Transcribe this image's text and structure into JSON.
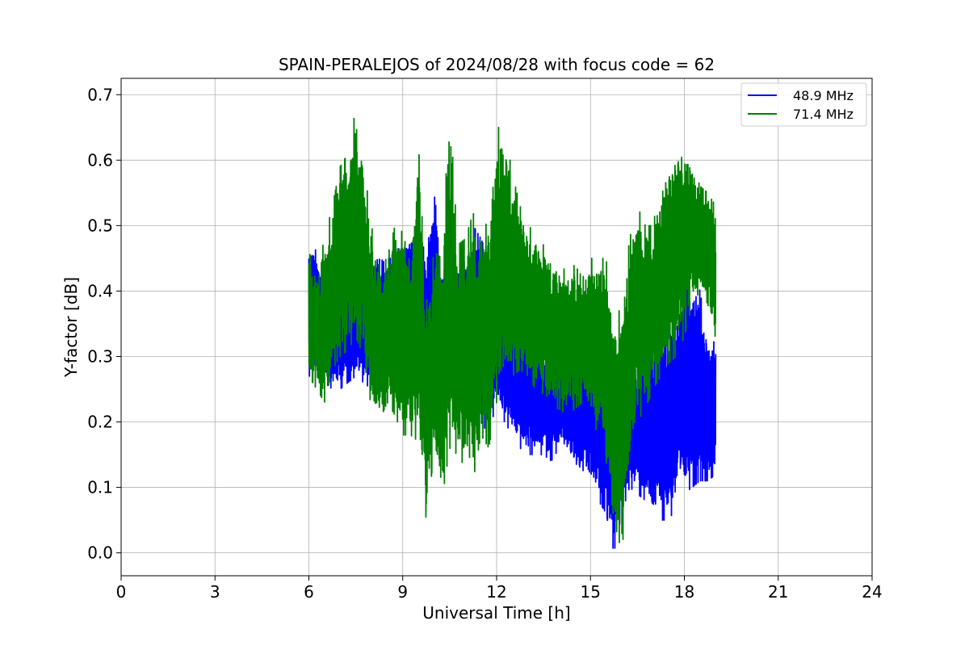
{
  "chart_data": {
    "type": "line",
    "title": "SPAIN-PERALEJOS of 2024/08/28 with focus code = 62",
    "xlabel": "Universal Time [h]",
    "ylabel": "Y-factor [dB]",
    "xlim": [
      0,
      24
    ],
    "ylim": [
      -0.035,
      0.725
    ],
    "xticks": [
      "0",
      "3",
      "6",
      "9",
      "12",
      "15",
      "18",
      "21",
      "24"
    ],
    "yticks": [
      "0.0",
      "0.1",
      "0.2",
      "0.3",
      "0.4",
      "0.5",
      "0.6",
      "0.7"
    ],
    "grid": true,
    "legend_position": "top-right",
    "series": [
      {
        "name": "48.9 MHz",
        "color": "#0000ff",
        "x": [
          6.0,
          6.25,
          6.5,
          6.75,
          7.0,
          7.25,
          7.5,
          7.75,
          8.0,
          8.25,
          8.5,
          8.75,
          9.0,
          9.25,
          9.5,
          9.75,
          10.0,
          10.25,
          10.5,
          10.75,
          11.0,
          11.25,
          11.5,
          11.75,
          12.0,
          12.25,
          12.5,
          12.75,
          13.0,
          13.25,
          13.5,
          13.75,
          14.0,
          14.25,
          14.5,
          14.75,
          15.0,
          15.25,
          15.5,
          15.75,
          16.0,
          16.25,
          16.5,
          16.75,
          17.0,
          17.25,
          17.5,
          17.75,
          18.0,
          18.25,
          18.5,
          18.75,
          19.0
        ],
        "low": [
          0.27,
          0.27,
          0.26,
          0.25,
          0.25,
          0.26,
          0.27,
          0.26,
          0.25,
          0.26,
          0.27,
          0.28,
          0.27,
          0.27,
          0.26,
          0.25,
          0.2,
          0.22,
          0.23,
          0.25,
          0.24,
          0.22,
          0.2,
          0.18,
          0.23,
          0.2,
          0.18,
          0.16,
          0.15,
          0.15,
          0.15,
          0.14,
          0.16,
          0.15,
          0.12,
          0.11,
          0.1,
          0.08,
          0.06,
          0.0,
          0.06,
          0.1,
          0.09,
          0.08,
          0.05,
          0.05,
          0.05,
          0.07,
          0.09,
          0.1,
          0.11,
          0.11,
          0.12
        ],
        "high": [
          0.48,
          0.46,
          0.43,
          0.43,
          0.42,
          0.45,
          0.44,
          0.44,
          0.46,
          0.47,
          0.45,
          0.45,
          0.48,
          0.49,
          0.5,
          0.45,
          0.55,
          0.46,
          0.43,
          0.42,
          0.45,
          0.5,
          0.48,
          0.45,
          0.42,
          0.4,
          0.37,
          0.35,
          0.33,
          0.34,
          0.32,
          0.31,
          0.3,
          0.32,
          0.35,
          0.33,
          0.36,
          0.33,
          0.34,
          0.32,
          0.28,
          0.3,
          0.3,
          0.31,
          0.33,
          0.36,
          0.35,
          0.38,
          0.4,
          0.45,
          0.4,
          0.33,
          0.32
        ]
      },
      {
        "name": "71.4 MHz",
        "color": "#008000",
        "x": [
          6.0,
          6.25,
          6.5,
          6.75,
          7.0,
          7.25,
          7.5,
          7.75,
          8.0,
          8.25,
          8.5,
          8.75,
          9.0,
          9.25,
          9.5,
          9.75,
          10.0,
          10.25,
          10.5,
          10.75,
          11.0,
          11.25,
          11.5,
          11.75,
          12.0,
          12.25,
          12.5,
          12.75,
          13.0,
          13.25,
          13.5,
          13.75,
          14.0,
          14.25,
          14.5,
          14.75,
          15.0,
          15.25,
          15.5,
          15.75,
          16.0,
          16.25,
          16.5,
          16.75,
          17.0,
          17.25,
          17.5,
          17.75,
          18.0,
          18.25,
          18.5,
          18.75,
          19.0
        ],
        "low": [
          0.27,
          0.25,
          0.23,
          0.28,
          0.3,
          0.31,
          0.33,
          0.3,
          0.22,
          0.2,
          0.23,
          0.21,
          0.18,
          0.18,
          0.17,
          0.05,
          0.15,
          0.08,
          0.16,
          0.15,
          0.13,
          0.11,
          0.18,
          0.16,
          0.23,
          0.26,
          0.27,
          0.28,
          0.27,
          0.25,
          0.22,
          0.22,
          0.22,
          0.21,
          0.22,
          0.23,
          0.21,
          0.18,
          0.14,
          0.05,
          0.0,
          0.13,
          0.2,
          0.22,
          0.25,
          0.27,
          0.29,
          0.3,
          0.33,
          0.38,
          0.4,
          0.38,
          0.31
        ],
        "high": [
          0.46,
          0.43,
          0.48,
          0.53,
          0.59,
          0.61,
          0.68,
          0.6,
          0.5,
          0.44,
          0.45,
          0.5,
          0.49,
          0.44,
          0.63,
          0.38,
          0.46,
          0.45,
          0.69,
          0.47,
          0.48,
          0.52,
          0.47,
          0.52,
          0.65,
          0.65,
          0.58,
          0.53,
          0.5,
          0.49,
          0.47,
          0.46,
          0.44,
          0.43,
          0.44,
          0.42,
          0.45,
          0.45,
          0.45,
          0.35,
          0.38,
          0.48,
          0.53,
          0.5,
          0.5,
          0.57,
          0.6,
          0.62,
          0.63,
          0.6,
          0.56,
          0.55,
          0.53
        ]
      }
    ]
  }
}
